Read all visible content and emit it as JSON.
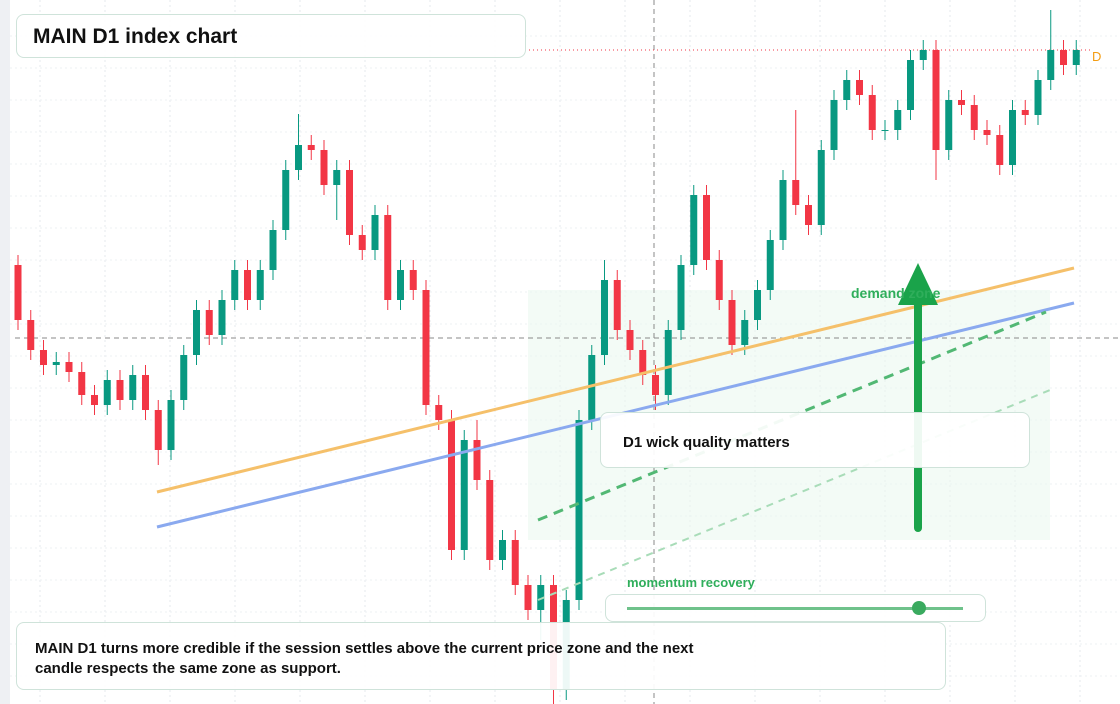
{
  "header": {
    "title": "MAIN D1 index chart"
  },
  "chart_data": {
    "type": "candlestick",
    "ylim": [
      0,
      704
    ],
    "up_color": "#089981",
    "down_color": "#f23645",
    "price_label": "D",
    "open": [
      439,
      384,
      354,
      339,
      342,
      332,
      309,
      299,
      324,
      304,
      329,
      294,
      254,
      304,
      349,
      394,
      369,
      404,
      434,
      404,
      434,
      474,
      534,
      559,
      554,
      519,
      534,
      469,
      454,
      489,
      404,
      434,
      414,
      299,
      284,
      154,
      264,
      224,
      144,
      164,
      119,
      94,
      119,
      14,
      104,
      284,
      349,
      424,
      374,
      354,
      329,
      309,
      374,
      439,
      509,
      444,
      404,
      359,
      384,
      414,
      464,
      524,
      499,
      479,
      554,
      604,
      624,
      609,
      574,
      574,
      594,
      644,
      654,
      554,
      604,
      599,
      574,
      569,
      539,
      594,
      589,
      624,
      654,
      639
    ],
    "high": [
      449,
      394,
      364,
      352,
      352,
      342,
      319,
      334,
      334,
      339,
      339,
      304,
      314,
      359,
      404,
      404,
      414,
      444,
      444,
      444,
      484,
      544,
      590,
      569,
      564,
      544,
      544,
      479,
      499,
      499,
      444,
      444,
      424,
      309,
      294,
      274,
      284,
      234,
      174,
      174,
      129,
      129,
      129,
      114,
      294,
      359,
      444,
      434,
      384,
      364,
      339,
      384,
      449,
      519,
      519,
      454,
      414,
      394,
      424,
      474,
      534,
      594,
      509,
      564,
      614,
      634,
      634,
      619,
      584,
      604,
      654,
      664,
      664,
      614,
      614,
      609,
      584,
      579,
      604,
      604,
      634,
      694,
      664,
      664
    ],
    "low": [
      374,
      344,
      329,
      329,
      322,
      299,
      289,
      289,
      294,
      294,
      284,
      239,
      244,
      294,
      339,
      359,
      359,
      394,
      394,
      394,
      424,
      464,
      524,
      544,
      509,
      484,
      459,
      444,
      444,
      394,
      394,
      404,
      289,
      274,
      144,
      144,
      214,
      134,
      134,
      109,
      84,
      64,
      0,
      4,
      94,
      274,
      339,
      364,
      344,
      319,
      294,
      299,
      364,
      429,
      434,
      394,
      349,
      349,
      374,
      404,
      454,
      489,
      469,
      469,
      544,
      594,
      599,
      564,
      564,
      564,
      584,
      634,
      524,
      544,
      589,
      564,
      559,
      529,
      529,
      579,
      579,
      614,
      629,
      629
    ],
    "close": [
      384,
      354,
      339,
      342,
      332,
      309,
      299,
      324,
      304,
      329,
      294,
      254,
      304,
      349,
      394,
      369,
      404,
      434,
      404,
      434,
      474,
      534,
      559,
      554,
      519,
      534,
      469,
      454,
      489,
      404,
      434,
      414,
      299,
      284,
      154,
      264,
      224,
      144,
      164,
      119,
      94,
      119,
      14,
      104,
      284,
      349,
      424,
      374,
      354,
      329,
      309,
      374,
      439,
      509,
      444,
      404,
      359,
      384,
      414,
      464,
      524,
      499,
      479,
      554,
      604,
      624,
      609,
      574,
      574,
      594,
      644,
      654,
      554,
      604,
      599,
      574,
      569,
      539,
      594,
      589,
      624,
      654,
      639,
      654
    ]
  },
  "annotations": {
    "zone_label": "demand zone",
    "callout": "D1 wick quality matters",
    "slider_label": "momentum recovery",
    "note": "MAIN D1 turns more credible if the session settles above the current price zone and the next candle respects the same zone as support."
  }
}
